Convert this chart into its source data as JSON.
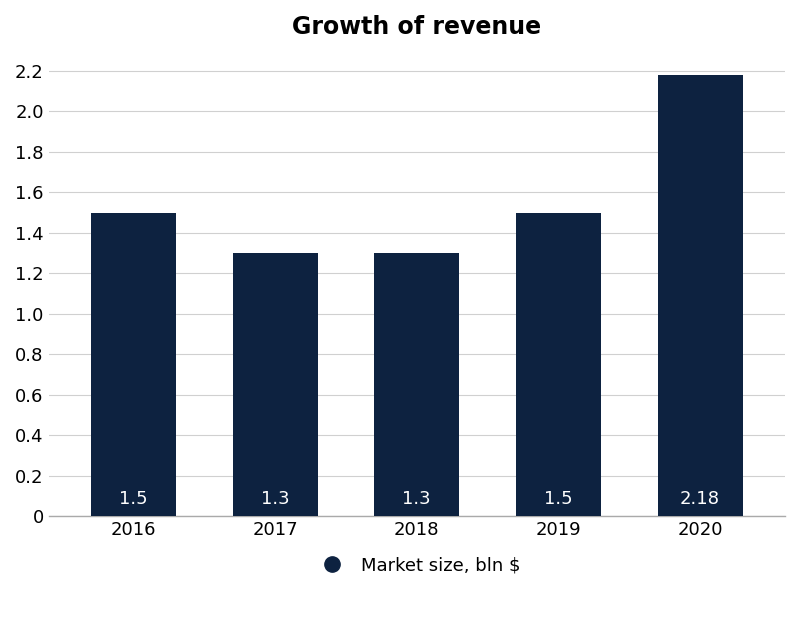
{
  "title": "Growth of revenue",
  "categories": [
    "2016",
    "2017",
    "2018",
    "2019",
    "2020"
  ],
  "values": [
    1.5,
    1.3,
    1.3,
    1.5,
    2.18
  ],
  "bar_color": "#0d2240",
  "bar_labels": [
    "1.5",
    "1.3",
    "1.3",
    "1.5",
    "2.18"
  ],
  "bar_label_color": "#ffffff",
  "bar_label_fontsize": 13,
  "title_fontsize": 17,
  "yticks": [
    0,
    0.2,
    0.4,
    0.6,
    0.8,
    1.0,
    1.2,
    1.4,
    1.6,
    1.8,
    2.0,
    2.2
  ],
  "ytick_labels": [
    "0",
    "0.2",
    "0.4",
    "0.6",
    "0.8",
    "1.0",
    "1.2",
    "1.4",
    "1.6",
    "1.8",
    "2.0",
    "2.2"
  ],
  "ylim": [
    0,
    2.3
  ],
  "legend_label": "Market size, bln $",
  "legend_marker_color": "#0d2240",
  "background_color": "#ffffff",
  "grid_color": "#d0d0d0",
  "tick_label_fontsize": 13,
  "bar_width": 0.6
}
